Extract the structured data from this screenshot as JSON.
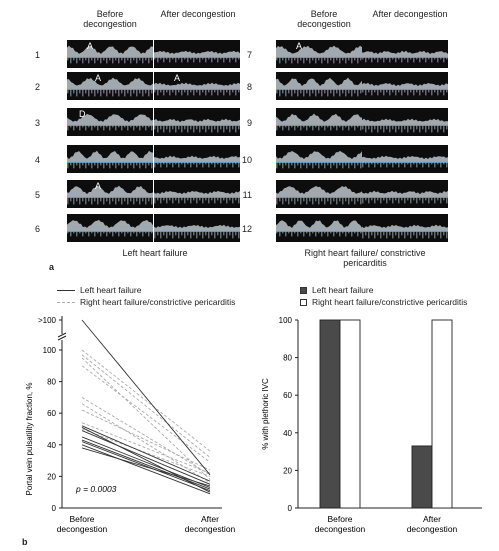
{
  "panel_a": {
    "label": "a",
    "headers": {
      "before": "Before decongestion",
      "after": "After decongestion"
    },
    "left_group": {
      "caption": "Left heart failure",
      "rows": [
        {
          "num": "1",
          "marker_before": "A",
          "marker_after": ""
        },
        {
          "num": "2",
          "marker_before": "A",
          "marker_after": "A"
        },
        {
          "num": "3",
          "marker_before": "D",
          "marker_after": ""
        },
        {
          "num": "4",
          "marker_before": "",
          "marker_after": ""
        },
        {
          "num": "5",
          "marker_before": "A",
          "marker_after": ""
        },
        {
          "num": "6",
          "marker_before": "",
          "marker_after": ""
        }
      ]
    },
    "right_group": {
      "caption": "Right heart failure/ constrictive pericarditis",
      "rows": [
        {
          "num": "7",
          "marker_before": "A",
          "marker_after": ""
        },
        {
          "num": "8",
          "marker_before": "",
          "marker_after": ""
        },
        {
          "num": "9",
          "marker_before": "",
          "marker_after": ""
        },
        {
          "num": "10",
          "marker_before": "",
          "marker_after": ""
        },
        {
          "num": "11",
          "marker_before": "",
          "marker_after": ""
        },
        {
          "num": "12",
          "marker_before": "",
          "marker_after": ""
        }
      ]
    }
  },
  "panel_b": {
    "label": "b",
    "legend": {
      "left": "Left heart failure",
      "right": "Right heart failure/constrictive pericarditis"
    },
    "colors": {
      "left": "#333333",
      "right": "#aaaaaa",
      "bar_left": "#4a4a4a",
      "bar_right": "#ffffff"
    }
  },
  "chart_data": [
    {
      "type": "line",
      "ylabel": "Portal vein pulsatility fraction, %",
      "categories": [
        "Before decongestion",
        "After decongestion"
      ],
      "y_ticks": [
        0,
        20,
        40,
        60,
        80,
        100
      ],
      "y_break_label": ">100",
      "ylim": [
        0,
        100
      ],
      "annotation": "p = 0.0003",
      "series": [
        {
          "name": "Left heart failure",
          "lines": [
            [
              125,
              21
            ],
            [
              52,
              17
            ],
            [
              51,
              10
            ],
            [
              49,
              15
            ],
            [
              45,
              13
            ],
            [
              43,
              12
            ],
            [
              42,
              11
            ],
            [
              40,
              9
            ],
            [
              38,
              14
            ]
          ]
        },
        {
          "name": "Right heart failure/constrictive pericarditis",
          "lines": [
            [
              100,
              36
            ],
            [
              97,
              32
            ],
            [
              95,
              18
            ],
            [
              90,
              29
            ],
            [
              70,
              21
            ],
            [
              66,
              16
            ],
            [
              62,
              24
            ],
            [
              54,
              22
            ],
            [
              50,
              20
            ]
          ]
        }
      ]
    },
    {
      "type": "bar",
      "ylabel": "% with plethoric IVC",
      "categories": [
        "Before decongestion",
        "After decongestion"
      ],
      "y_ticks": [
        0,
        20,
        40,
        60,
        80,
        100
      ],
      "ylim": [
        0,
        100
      ],
      "series": [
        {
          "name": "Left heart failure",
          "values": [
            100,
            33
          ]
        },
        {
          "name": "Right heart failure/constrictive pericarditis",
          "values": [
            100,
            100
          ]
        }
      ]
    }
  ]
}
